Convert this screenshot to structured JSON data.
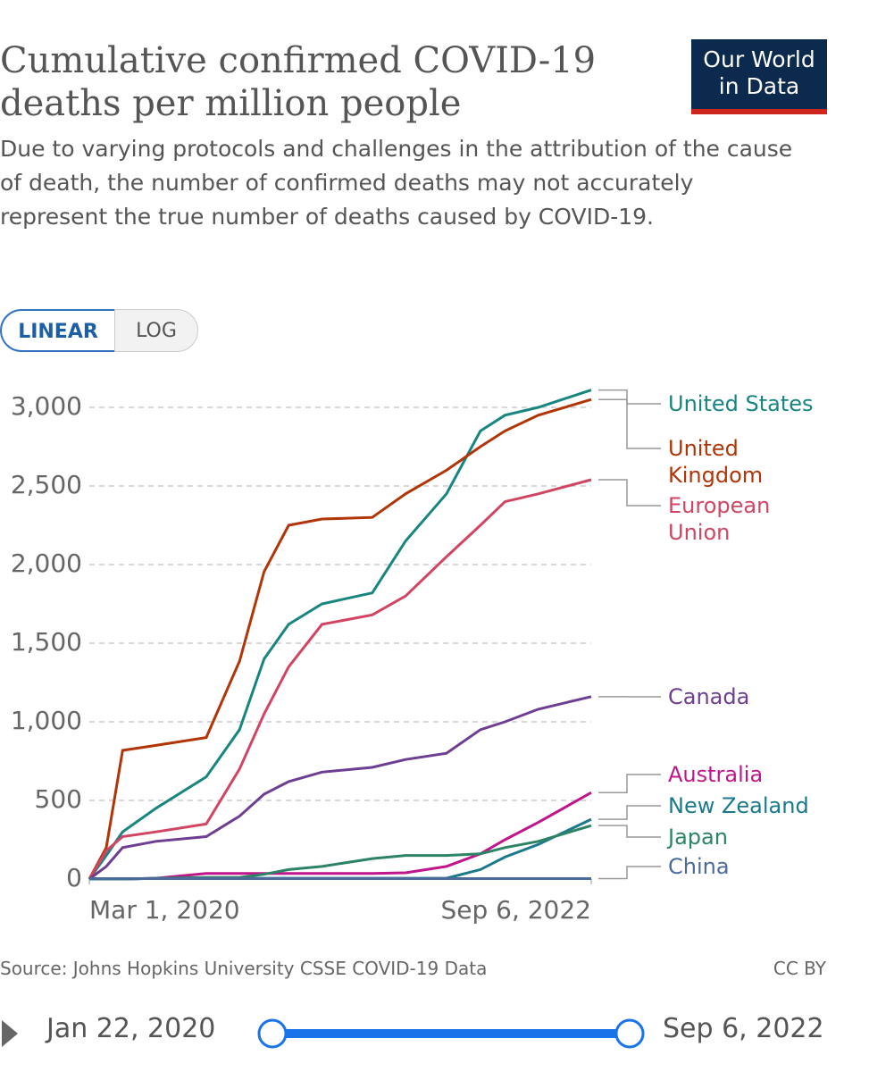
{
  "logo": "Our World in Data",
  "scale_buttons": [
    "LINEAR",
    "LOG"
  ],
  "source": "Source: Johns Hopkins University CSSE COVID-19 Data",
  "license": "CC BY",
  "timeline": {
    "start": "Jan 22, 2020",
    "end": "Sep 6, 2022"
  },
  "chart_data": {
    "type": "line",
    "title": "Cumulative confirmed COVID-19 deaths per million people",
    "subtitle": "Due to varying protocols and challenges in the attribution of the cause of death, the number of confirmed deaths may not accurately represent the true number of deaths caused by COVID-19.",
    "x": [
      "Mar 1, 2020",
      "Apr 1, 2020",
      "May 1, 2020",
      "Jul 1, 2020",
      "Oct 1, 2020",
      "Dec 1, 2020",
      "Jan 15, 2021",
      "Mar 1, 2021",
      "May 1, 2021",
      "Aug 1, 2021",
      "Oct 1, 2021",
      "Dec 15, 2021",
      "Feb 15, 2022",
      "Apr 1, 2022",
      "Jun 1, 2022",
      "Sep 6, 2022"
    ],
    "xlim": [
      "Mar 1, 2020",
      "Sep 6, 2022"
    ],
    "xticks": [
      "Mar 1, 2020",
      "Sep 6, 2022"
    ],
    "ylim": [
      0,
      3000
    ],
    "yticks": [
      0,
      500,
      {
        "value": 1000,
        "label": "1,000"
      },
      {
        "value": 1500,
        "label": "1,500"
      },
      {
        "value": 2000,
        "label": "2,000"
      },
      {
        "value": 2500,
        "label": "2,500"
      },
      {
        "value": 3000,
        "label": "3,000"
      }
    ],
    "grid": true,
    "series": [
      {
        "name": "United States",
        "color": "#18857f",
        "values": [
          0,
          150,
          300,
          450,
          650,
          950,
          1400,
          1620,
          1750,
          1820,
          2150,
          2450,
          2850,
          2950,
          3000,
          3110
        ]
      },
      {
        "name": "United Kingdom",
        "color": "#b13507",
        "values": [
          0,
          200,
          818,
          850,
          900,
          1386,
          1955,
          2250,
          2290,
          2300,
          2450,
          2600,
          2750,
          2850,
          2950,
          3050
        ]
      },
      {
        "name": "European Union",
        "color": "#d14562",
        "values": [
          0,
          180,
          270,
          300,
          350,
          700,
          1050,
          1350,
          1620,
          1680,
          1800,
          2050,
          2250,
          2400,
          2450,
          2540
        ]
      },
      {
        "name": "Canada",
        "color": "#6d3e91",
        "values": [
          0,
          80,
          200,
          240,
          270,
          400,
          540,
          620,
          680,
          710,
          760,
          800,
          950,
          1000,
          1080,
          1160
        ]
      },
      {
        "name": "Australia",
        "color": "#c0168c",
        "values": [
          0,
          0,
          0,
          5,
          35,
          35,
          35,
          35,
          35,
          35,
          40,
          80,
          160,
          250,
          360,
          550
        ]
      },
      {
        "name": "New Zealand",
        "color": "#1a7a8c",
        "values": [
          0,
          0,
          0,
          4,
          5,
          5,
          5,
          5,
          5,
          5,
          5,
          5,
          60,
          140,
          220,
          380
        ]
      },
      {
        "name": "Japan",
        "color": "#2c8465",
        "values": [
          0,
          0,
          0,
          5,
          10,
          10,
          30,
          60,
          80,
          130,
          150,
          150,
          160,
          200,
          240,
          340
        ]
      },
      {
        "name": "China",
        "color": "#4c6a9c",
        "values": [
          3,
          3,
          3,
          3,
          3,
          3,
          3,
          3,
          3,
          3,
          3,
          3,
          3,
          3,
          3,
          3
        ]
      }
    ]
  }
}
